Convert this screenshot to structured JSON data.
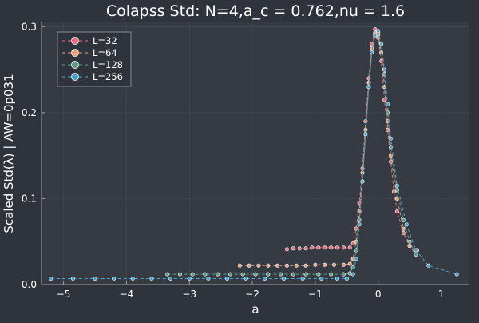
{
  "chart_data": {
    "type": "line",
    "title": "Colapss Std: N=4,a_c = 0.762,nu = 1.6",
    "xlabel": "a",
    "ylabel": "Scaled Std(λ) | AW=0p031",
    "xlim": [
      -5.35,
      1.45
    ],
    "ylim": [
      0.0,
      0.305
    ],
    "xticks": [
      -5,
      -4,
      -3,
      -2,
      -1,
      0,
      1
    ],
    "xtick_labels": [
      "−5",
      "−4",
      "−3",
      "−2",
      "−1",
      "0",
      "1"
    ],
    "yticks": [
      0.0,
      0.1,
      0.2,
      0.3
    ],
    "ytick_labels": [
      "0.0",
      "0.1",
      "0.2",
      "0.3"
    ],
    "grid": true,
    "legend_position": "top-left",
    "colors": {
      "background": "#2f343c",
      "plot_background": "#353a43",
      "grid": "#444a55",
      "text": "#ffffff"
    },
    "series": [
      {
        "name": "L=32",
        "color": "#e26f7e",
        "x": [
          -1.45,
          -1.35,
          -1.25,
          -1.15,
          -1.05,
          -0.95,
          -0.85,
          -0.75,
          -0.65,
          -0.55,
          -0.45,
          -0.4,
          -0.35,
          -0.3,
          -0.25,
          -0.2,
          -0.15,
          -0.1,
          -0.05,
          0.0,
          0.05,
          0.1,
          0.15,
          0.2,
          0.25,
          0.3,
          0.4,
          0.5,
          0.62
        ],
        "y": [
          0.041,
          0.042,
          0.042,
          0.042,
          0.043,
          0.043,
          0.043,
          0.043,
          0.043,
          0.043,
          0.043,
          0.048,
          0.065,
          0.095,
          0.135,
          0.19,
          0.24,
          0.28,
          0.297,
          0.287,
          0.26,
          0.215,
          0.18,
          0.143,
          0.108,
          0.085,
          0.06,
          0.045,
          0.04
        ]
      },
      {
        "name": "L=64",
        "color": "#e3a17a",
        "x": [
          -2.2,
          -2.05,
          -1.9,
          -1.75,
          -1.6,
          -1.45,
          -1.3,
          -1.15,
          -1.0,
          -0.85,
          -0.7,
          -0.55,
          -0.45,
          -0.4,
          -0.35,
          -0.3,
          -0.25,
          -0.2,
          -0.15,
          -0.1,
          -0.05,
          0.0,
          0.05,
          0.1,
          0.15,
          0.2,
          0.3,
          0.4,
          0.5,
          0.6
        ],
        "y": [
          0.022,
          0.022,
          0.022,
          0.022,
          0.022,
          0.022,
          0.022,
          0.022,
          0.023,
          0.023,
          0.023,
          0.023,
          0.024,
          0.03,
          0.05,
          0.085,
          0.13,
          0.18,
          0.235,
          0.275,
          0.293,
          0.29,
          0.27,
          0.23,
          0.19,
          0.15,
          0.1,
          0.065,
          0.045,
          0.035
        ]
      },
      {
        "name": "L=128",
        "color": "#5f9b84",
        "x": [
          -3.35,
          -3.15,
          -2.95,
          -2.75,
          -2.55,
          -2.35,
          -2.15,
          -1.95,
          -1.75,
          -1.55,
          -1.35,
          -1.15,
          -0.95,
          -0.75,
          -0.55,
          -0.45,
          -0.4,
          -0.35,
          -0.3,
          -0.25,
          -0.2,
          -0.15,
          -0.1,
          -0.05,
          0.0,
          0.05,
          0.1,
          0.15,
          0.2,
          0.3,
          0.4,
          0.5,
          0.6
        ],
        "y": [
          0.012,
          0.012,
          0.012,
          0.012,
          0.012,
          0.012,
          0.012,
          0.012,
          0.012,
          0.012,
          0.012,
          0.012,
          0.012,
          0.012,
          0.012,
          0.013,
          0.02,
          0.04,
          0.075,
          0.12,
          0.175,
          0.23,
          0.27,
          0.29,
          0.293,
          0.28,
          0.245,
          0.2,
          0.16,
          0.11,
          0.075,
          0.05,
          0.035
        ]
      },
      {
        "name": "L=256",
        "color": "#4aa3c7",
        "x": [
          -5.2,
          -4.85,
          -4.5,
          -4.2,
          -3.9,
          -3.6,
          -3.3,
          -3.0,
          -2.7,
          -2.4,
          -2.1,
          -1.8,
          -1.5,
          -1.2,
          -0.9,
          -0.65,
          -0.5,
          -0.4,
          -0.35,
          -0.3,
          -0.25,
          -0.2,
          -0.15,
          -0.1,
          -0.05,
          0.0,
          0.05,
          0.1,
          0.15,
          0.2,
          0.3,
          0.45,
          0.6,
          0.8,
          1.25
        ],
        "y": [
          0.007,
          0.007,
          0.007,
          0.007,
          0.007,
          0.007,
          0.007,
          0.007,
          0.007,
          0.007,
          0.007,
          0.007,
          0.007,
          0.007,
          0.007,
          0.007,
          0.007,
          0.012,
          0.03,
          0.07,
          0.12,
          0.175,
          0.23,
          0.27,
          0.29,
          0.295,
          0.28,
          0.25,
          0.21,
          0.17,
          0.115,
          0.07,
          0.04,
          0.022,
          0.012
        ]
      }
    ]
  }
}
